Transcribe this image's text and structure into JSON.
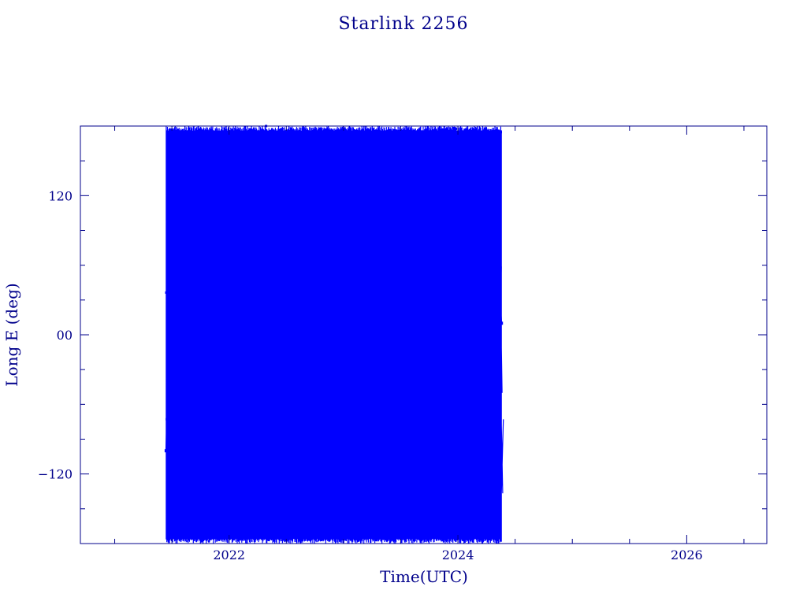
{
  "colors": {
    "axes": "#00008b",
    "series": "#0000ff",
    "background": "#ffffff"
  },
  "chart_data": {
    "type": "line",
    "title": "Starlink 2256",
    "xlabel": "Time(UTC)",
    "ylabel": "Long E (deg)",
    "xlim": [
      2020.7,
      2026.7
    ],
    "ylim": [
      -180,
      180
    ],
    "xticks": [
      2022,
      2024,
      2026
    ],
    "xtick_labels": [
      "2022",
      "2024",
      "2026"
    ],
    "yticks": [
      -120,
      0,
      120
    ],
    "ytick_labels": [
      "−120",
      "00",
      "120"
    ],
    "grid": false,
    "series": [
      {
        "style": "lines+points",
        "x_range": [
          2021.45,
          2024.38
        ],
        "y_range": [
          -180,
          180
        ],
        "x": [
          2021.45,
          2021.52,
          2021.6,
          2021.7,
          2021.8,
          2021.9,
          2022.0,
          2022.1,
          2022.2,
          2022.3,
          2022.4,
          2022.5,
          2022.6,
          2022.7,
          2022.8,
          2022.9,
          2023.0,
          2023.1,
          2023.2,
          2023.3,
          2023.4,
          2023.5,
          2023.6,
          2023.7,
          2023.8,
          2023.9,
          2024.0,
          2024.1,
          2024.2,
          2024.3,
          2024.38
        ],
        "y": [
          -100,
          150,
          -150,
          120,
          -60,
          170,
          -170,
          90,
          -120,
          30,
          -175,
          160,
          -90,
          60,
          -140,
          175,
          -30,
          130,
          -160,
          100,
          -110,
          150,
          -70,
          175,
          -130,
          80,
          -165,
          140,
          -100,
          120,
          10
        ]
      }
    ]
  }
}
